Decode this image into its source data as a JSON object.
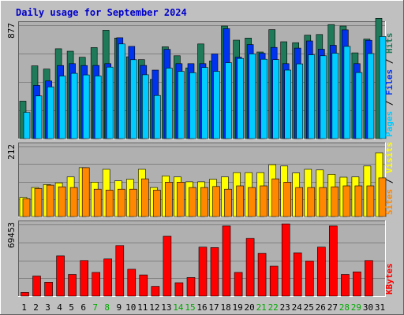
{
  "chart_data": {
    "type": "bar",
    "title": "Daily usage for September 2024",
    "x": [
      "1",
      "2",
      "3",
      "4",
      "5",
      "6",
      "7",
      "8",
      "9",
      "10",
      "11",
      "12",
      "13",
      "14",
      "15",
      "16",
      "17",
      "18",
      "19",
      "20",
      "21",
      "22",
      "23",
      "24",
      "25",
      "26",
      "27",
      "28",
      "29",
      "30",
      "31"
    ],
    "weekend_days": [
      "7",
      "8",
      "14",
      "15",
      "21",
      "22",
      "28",
      "29"
    ],
    "panels": [
      {
        "name": "hits-files-pages",
        "ymax_label": "877",
        "ymax": 877,
        "series": [
          {
            "name": "Hits",
            "color": "#1f7a5a",
            "values": [
              290,
              563,
              538,
              695,
              676,
              629,
              704,
              838,
              778,
              633,
              611,
              458,
              710,
              641,
              547,
              732,
              601,
              871,
              761,
              778,
              670,
              843,
              749,
              742,
              800,
              805,
              882,
              871,
              663,
              770,
              930
            ]
          },
          {
            "name": "Files",
            "color": "#0033ee",
            "values": [
              0,
              412,
              446,
              565,
              580,
              565,
              566,
              580,
              780,
              713,
              566,
              530,
              690,
              580,
              580,
              580,
              655,
              850,
              630,
              727,
              660,
              705,
              580,
              700,
              755,
              691,
              722,
              841,
              580,
              760,
              0
            ]
          },
          {
            "name": "Pages",
            "color": "#00ccff",
            "values": [
              203,
              330,
              400,
              484,
              505,
              493,
              485,
              553,
              732,
              610,
              494,
              334,
              545,
              520,
              510,
              550,
              520,
              587,
              620,
              655,
              614,
              611,
              530,
              578,
              648,
              641,
              660,
              713,
              511,
              658,
              789
            ]
          }
        ],
        "legend_side": [
          "Pages",
          "Files",
          "Hits"
        ],
        "legend_colors": [
          "#00ccff",
          "#0033ee",
          "#1f7a5a"
        ]
      },
      {
        "name": "visits-sites",
        "ymax_label": "212",
        "ymax": 212,
        "series": [
          {
            "name": "Visits",
            "color": "#ffff00",
            "values": [
              58,
              88,
              97,
              102,
              120,
              148,
              104,
              143,
              108,
              113,
              143,
              88,
              123,
              120,
              105,
              105,
              113,
              120,
              133,
              133,
              133,
              157,
              153,
              132,
              143,
              141,
              128,
              119,
              120,
              153,
              193
            ]
          },
          {
            "name": "Sites",
            "color": "#ff8800",
            "values": [
              54,
              85,
              95,
              90,
              88,
              148,
              83,
              80,
              83,
              83,
              114,
              80,
              104,
              104,
              88,
              88,
              91,
              83,
              93,
              88,
              93,
              114,
              104,
              88,
              88,
              88,
              90,
              93,
              93,
              93,
              117
            ]
          }
        ],
        "legend_side": [
          "Sites",
          "Visits"
        ],
        "legend_colors": [
          "#ff8800",
          "#ffff00"
        ]
      },
      {
        "name": "kbytes",
        "ymax_label": "69453",
        "ymax": 69453,
        "series": [
          {
            "name": "KBytes",
            "color": "#ff0000",
            "values": [
              3600,
              19500,
              13500,
              39000,
              21000,
              34500,
              23000,
              36000,
              49000,
              26000,
              20500,
              9500,
              58000,
              13000,
              18000,
              47500,
              47000,
              68000,
              23000,
              56000,
              41500,
              29000,
              70000,
              42000,
              34000,
              47500,
              68000,
              21000,
              23500,
              34500,
              0
            ]
          }
        ],
        "legend_side": [
          "KBytes"
        ],
        "legend_colors": [
          "#ff0000"
        ]
      }
    ],
    "colors": {
      "background": "#c0c0c0",
      "plot_bg": "#b0b0b0",
      "grid": "#808080",
      "title": "#0000cc",
      "weekend_label": "#00aa00",
      "weekday_label": "#000000"
    }
  }
}
